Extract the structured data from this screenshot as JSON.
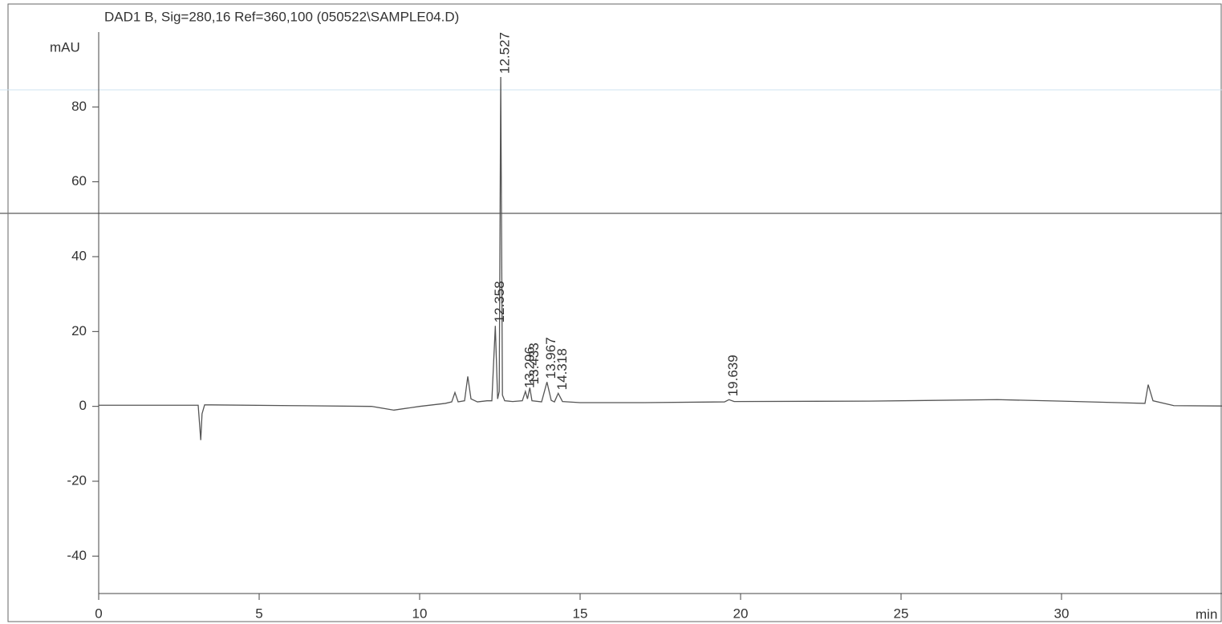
{
  "chart_data": {
    "type": "line",
    "title": "DAD1 B, Sig=280,16 Ref=360,100 (050522\\SAMPLE04.D)",
    "y_label": "mAU",
    "x_label": "min",
    "x": [
      0,
      3.1,
      3.18,
      3.22,
      3.3,
      3.5,
      6,
      8.5,
      9.2,
      10,
      10.8,
      11.0,
      11.1,
      11.2,
      11.4,
      11.5,
      11.6,
      11.8,
      12.1,
      12.25,
      12.358,
      12.43,
      12.48,
      12.527,
      12.58,
      12.65,
      12.9,
      13.2,
      13.296,
      13.36,
      13.433,
      13.5,
      13.8,
      13.967,
      14.1,
      14.2,
      14.318,
      14.45,
      15,
      17,
      19.5,
      19.639,
      19.8,
      24,
      28,
      30,
      32.6,
      32.7,
      32.85,
      33.5,
      35
    ],
    "values": [
      0.3,
      0.3,
      -9,
      -2,
      0.4,
      0.4,
      0.2,
      0,
      -1,
      0,
      0.8,
      1.2,
      3.7,
      1.2,
      1.5,
      8,
      2,
      1.2,
      1.5,
      1.5,
      21.5,
      2,
      4,
      88,
      3,
      1.5,
      1.3,
      1.5,
      4,
      2,
      5,
      1.5,
      1.2,
      6.5,
      1.6,
      1.2,
      3.5,
      1.3,
      1,
      1,
      1.2,
      1.8,
      1.3,
      1.4,
      1.8,
      1.4,
      0.8,
      5.8,
      1.5,
      0.2,
      0.1
    ],
    "color": "#555555",
    "peaks": [
      12.358,
      12.527,
      13.296,
      13.433,
      13.967,
      14.318,
      19.639
    ],
    "xlim": [
      0,
      35
    ],
    "xticks": [
      0,
      5,
      10,
      15,
      20,
      25,
      30
    ],
    "ylim": [
      -50,
      100
    ],
    "yticks": [
      -40,
      -20,
      0,
      20,
      40,
      60,
      80
    ]
  }
}
